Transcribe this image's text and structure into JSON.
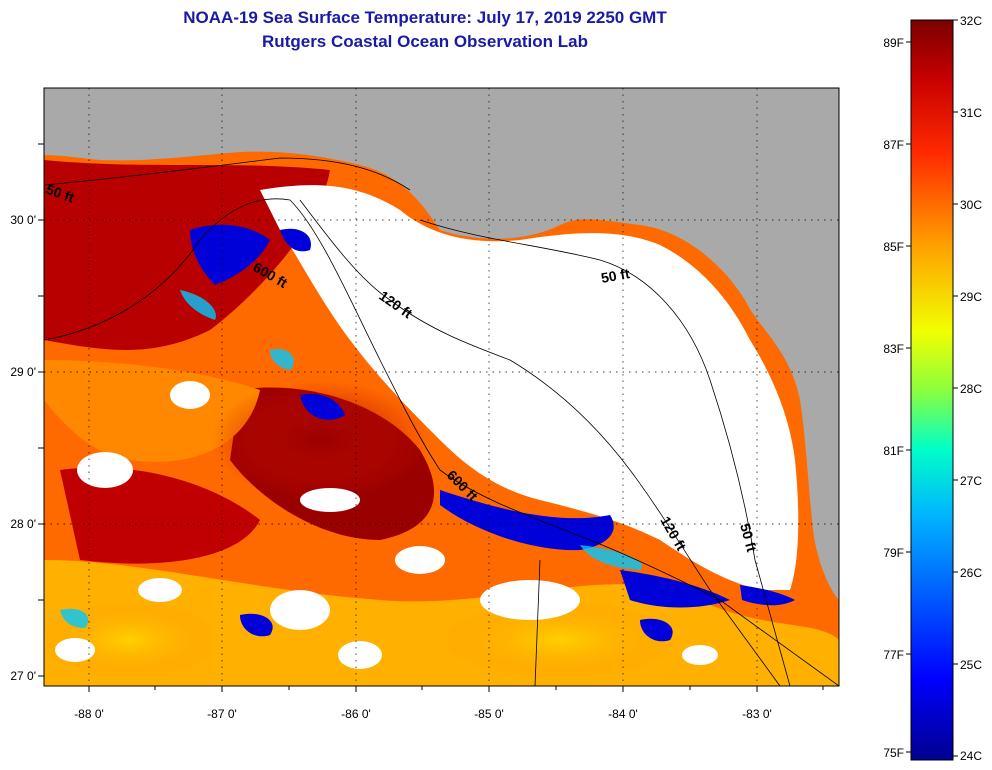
{
  "header": {
    "title": "NOAA-19 Sea Surface Temperature:  July 17, 2019 2250 GMT",
    "subtitle": "Rutgers Coastal Ocean Observation Lab"
  },
  "map": {
    "lat_labels": [
      "30 0'",
      "29 0'",
      "28 0'",
      "27 0'"
    ],
    "lon_labels": [
      "-88 0'",
      "-87 0'",
      "-86 0'",
      "-85 0'",
      "-84 0'",
      "-83 0'"
    ],
    "contour_labels": [
      "50 ft",
      "600 ft",
      "120 ft",
      "50 ft",
      "600 ft",
      "120 ft",
      "50 ft"
    ],
    "colors": {
      "land": "#a9a9a9",
      "cloud": "#ffffff",
      "grid": "dotted"
    }
  },
  "colorbar": {
    "celsius": [
      "32C",
      "31C",
      "30C",
      "29C",
      "28C",
      "27C",
      "26C",
      "25C",
      "24C"
    ],
    "fahrenheit": [
      "89F",
      "87F",
      "85F",
      "83F",
      "81F",
      "79F",
      "77F",
      "75F"
    ],
    "colors": [
      "#7f0000",
      "#e00000",
      "#ff7a00",
      "#f2ff00",
      "#00ffc8",
      "#00a0ff",
      "#0000ff",
      "#00008f"
    ]
  }
}
